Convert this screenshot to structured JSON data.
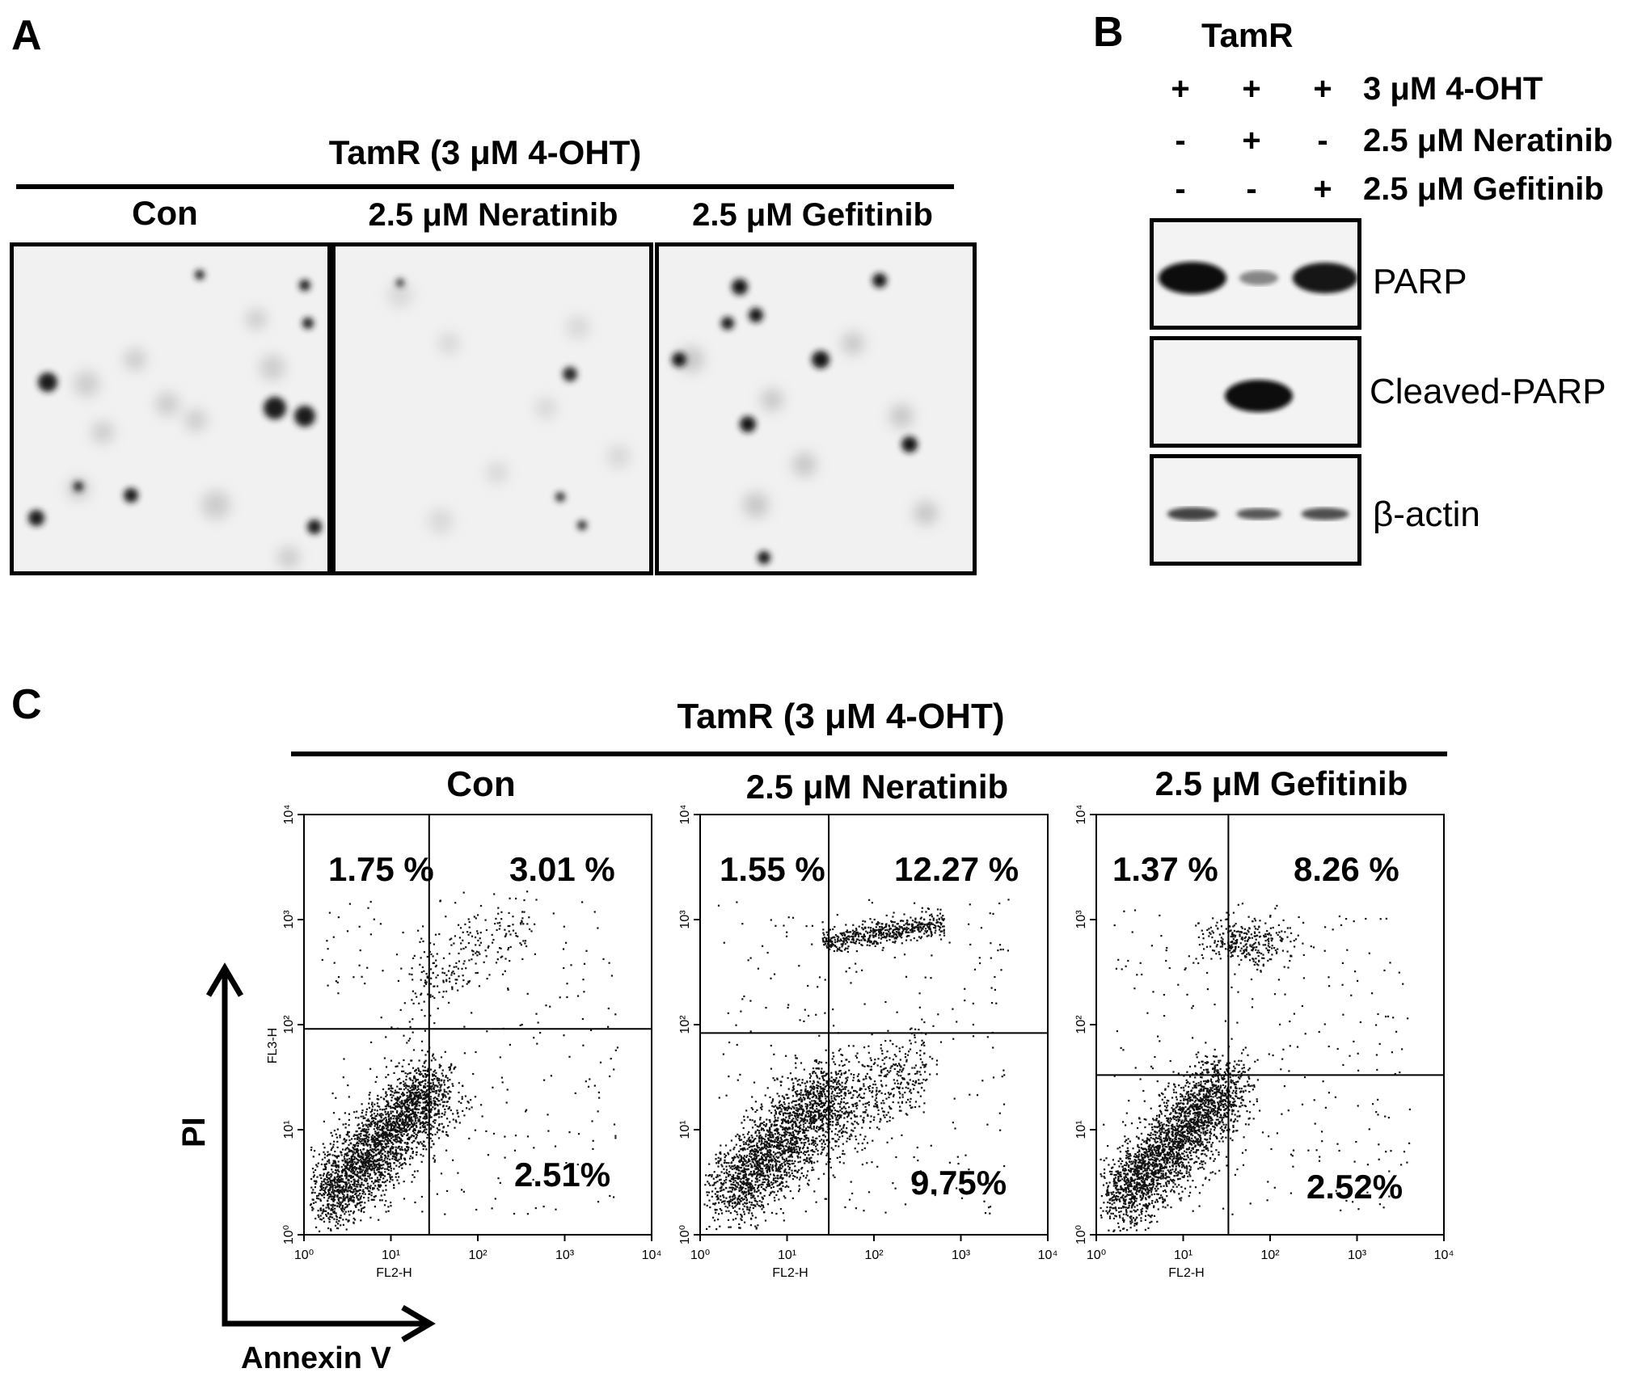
{
  "panels": {
    "A": {
      "letter": "A",
      "group_title": "TamR (3 μM 4-OHT)",
      "conditions": [
        "Con",
        "2.5 μM Neratinib",
        "2.5 μM Gefitinib"
      ]
    },
    "B": {
      "letter": "B",
      "cell_line": "TamR",
      "treatments": [
        {
          "label": "3 μM 4-OHT",
          "signs": [
            "+",
            "+",
            "+"
          ]
        },
        {
          "label": "2.5 μM Neratinib",
          "signs": [
            "-",
            "+",
            "-"
          ]
        },
        {
          "label": "2.5 μM Gefitinib",
          "signs": [
            "-",
            "-",
            "+"
          ]
        }
      ],
      "blots": [
        {
          "label": "PARP",
          "band_intensity": [
            1.0,
            0.35,
            0.95
          ]
        },
        {
          "label": "Cleaved-PARP",
          "band_intensity": [
            0.0,
            1.0,
            0.0
          ]
        },
        {
          "label": "β-actin",
          "band_intensity": [
            0.7,
            0.6,
            0.65
          ]
        }
      ]
    },
    "C": {
      "letter": "C",
      "group_title": "TamR (3 μM 4-OHT)",
      "y_axis_label": "PI",
      "x_axis_label": "Annexin V",
      "plots": [
        {
          "title": "Con",
          "quadrants": {
            "upper_left": "1.75 %",
            "upper_right": "3.01 %",
            "lower_right": "2.51%"
          },
          "xlabel": "FL2-H",
          "ylabel": "FL3-H"
        },
        {
          "title": "2.5 μM Neratinib",
          "quadrants": {
            "upper_left": "1.55 %",
            "upper_right": "12.27 %",
            "lower_right": "9.75%"
          },
          "xlabel": "FL2-H",
          "ylabel": ""
        },
        {
          "title": "2.5 μM Gefitinib",
          "quadrants": {
            "upper_left": "1.37 %",
            "upper_right": "8.26 %",
            "lower_right": "2.52%"
          },
          "xlabel": "FL2-H",
          "ylabel": ""
        }
      ],
      "x_ticks": [
        "10⁰",
        "10¹",
        "10²",
        "10³",
        "10⁴"
      ],
      "y_ticks": [
        "10⁰",
        "10¹",
        "10²",
        "10³",
        "10⁴"
      ]
    }
  }
}
